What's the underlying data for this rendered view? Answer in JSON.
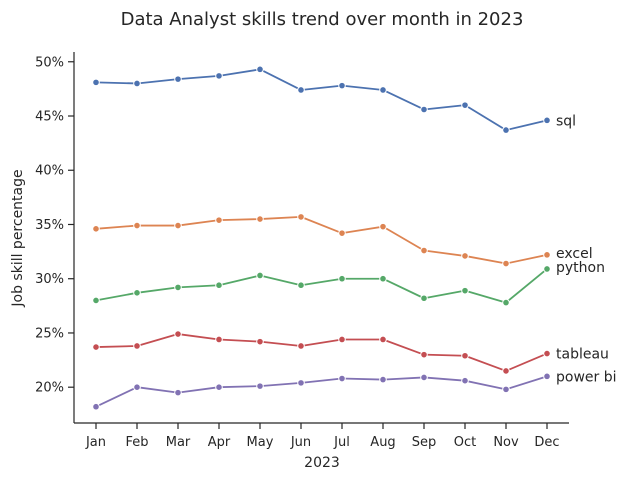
{
  "chart_data": {
    "type": "line",
    "title": "Data Analyst skills trend over month in 2023",
    "xlabel": "2023",
    "ylabel": "Job skill percentage",
    "categories": [
      "Jan",
      "Feb",
      "Mar",
      "Apr",
      "May",
      "Jun",
      "Jul",
      "Aug",
      "Sep",
      "Oct",
      "Nov",
      "Dec"
    ],
    "y_ticks": [
      20,
      25,
      30,
      35,
      40,
      45,
      50
    ],
    "y_tick_labels": [
      "20%",
      "25%",
      "30%",
      "35%",
      "40%",
      "45%",
      "50%"
    ],
    "ylim": [
      16.7,
      50.9
    ],
    "grid": false,
    "legend": "none (direct labels at line ends)",
    "series": [
      {
        "name": "sql",
        "color": "#4c72b0",
        "values": [
          48.1,
          48.0,
          48.4,
          48.7,
          49.3,
          47.4,
          47.8,
          47.4,
          45.6,
          46.0,
          43.7,
          44.6
        ]
      },
      {
        "name": "excel",
        "color": "#dd8452",
        "values": [
          34.6,
          34.9,
          34.9,
          35.4,
          35.5,
          35.7,
          34.2,
          34.8,
          32.6,
          32.1,
          31.4,
          32.2
        ]
      },
      {
        "name": "python",
        "color": "#55a868",
        "values": [
          28.0,
          28.7,
          29.2,
          29.4,
          30.3,
          29.4,
          30.0,
          30.0,
          28.2,
          28.9,
          27.8,
          30.9
        ]
      },
      {
        "name": "tableau",
        "color": "#c44e52",
        "values": [
          23.7,
          23.8,
          24.9,
          24.4,
          24.2,
          23.8,
          24.4,
          24.4,
          23.0,
          22.9,
          21.5,
          23.1
        ]
      },
      {
        "name": "power bi",
        "color": "#8172b3",
        "values": [
          18.2,
          20.0,
          19.5,
          20.0,
          20.1,
          20.4,
          20.8,
          20.7,
          20.9,
          20.6,
          19.8,
          21.0
        ]
      }
    ]
  }
}
